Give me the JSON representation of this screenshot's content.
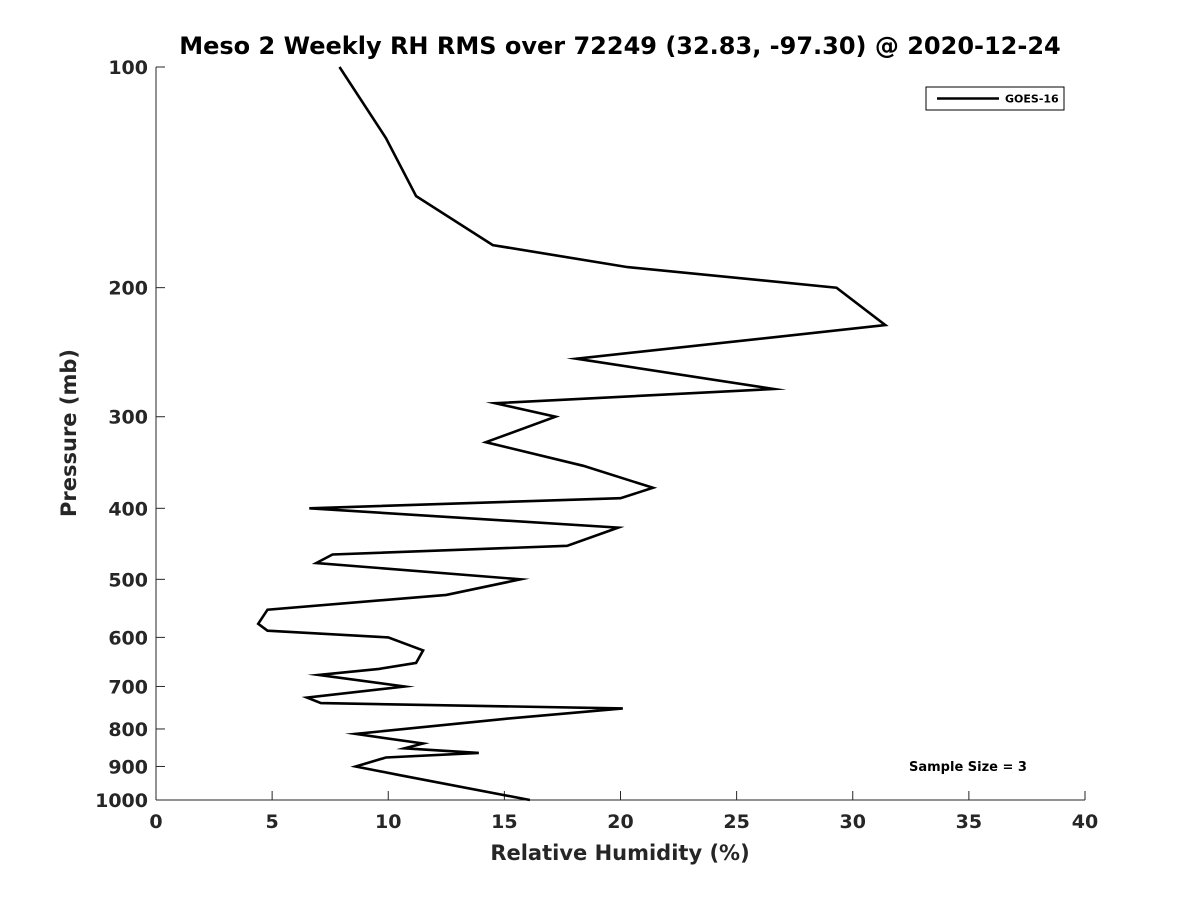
{
  "chart_data": {
    "type": "line",
    "title": "Meso 2 Weekly RH RMS over 72249 (32.83, -97.30) @ 2020-12-24",
    "xlabel": "Relative Humidity (%)",
    "ylabel": "Pressure (mb)",
    "xlim": [
      0,
      40
    ],
    "ylim": [
      100,
      1000
    ],
    "y_scale": "log",
    "y_reversed": true,
    "x_ticks": [
      0,
      5,
      10,
      15,
      20,
      25,
      30,
      35,
      40
    ],
    "x_tick_labels": [
      "0",
      "5",
      "10",
      "15",
      "20",
      "25",
      "30",
      "35",
      "40"
    ],
    "y_ticks": [
      100,
      200,
      300,
      400,
      500,
      600,
      700,
      800,
      900,
      1000
    ],
    "y_tick_labels": [
      "100",
      "200",
      "300",
      "400",
      "500",
      "600",
      "700",
      "800",
      "900",
      "1000"
    ],
    "grid": false,
    "legend_position": "top-right",
    "annotation": "Sample Size = 3",
    "series": [
      {
        "name": "GOES-16",
        "color": "#000000",
        "points": [
          [
            7.9,
            100
          ],
          [
            9.9,
            125
          ],
          [
            11.2,
            150
          ],
          [
            14.5,
            175
          ],
          [
            20.3,
            187.5
          ],
          [
            29.3,
            200
          ],
          [
            31.4,
            225
          ],
          [
            18.1,
            250
          ],
          [
            26.6,
            275
          ],
          [
            14.6,
            287.5
          ],
          [
            17.2,
            300
          ],
          [
            14.2,
            325
          ],
          [
            18.4,
            350
          ],
          [
            21.4,
            375
          ],
          [
            20.0,
            387.5
          ],
          [
            6.6,
            400
          ],
          [
            19.9,
            425
          ],
          [
            17.7,
            450
          ],
          [
            7.6,
            462.5
          ],
          [
            6.9,
            475
          ],
          [
            15.7,
            500
          ],
          [
            12.5,
            525
          ],
          [
            4.8,
            550
          ],
          [
            4.4,
            575
          ],
          [
            4.8,
            587.5
          ],
          [
            10.0,
            600
          ],
          [
            11.5,
            625
          ],
          [
            11.2,
            650
          ],
          [
            9.6,
            662.5
          ],
          [
            7.0,
            675
          ],
          [
            10.7,
            700
          ],
          [
            6.5,
            725
          ],
          [
            7.1,
            737.5
          ],
          [
            20.1,
            750
          ],
          [
            15.0,
            775
          ],
          [
            8.6,
            812.5
          ],
          [
            11.5,
            837.5
          ],
          [
            10.7,
            850
          ],
          [
            13.9,
            862.5
          ],
          [
            9.9,
            875
          ],
          [
            8.6,
            900
          ],
          [
            10.5,
            925
          ],
          [
            16.1,
            1000
          ]
        ]
      }
    ]
  }
}
